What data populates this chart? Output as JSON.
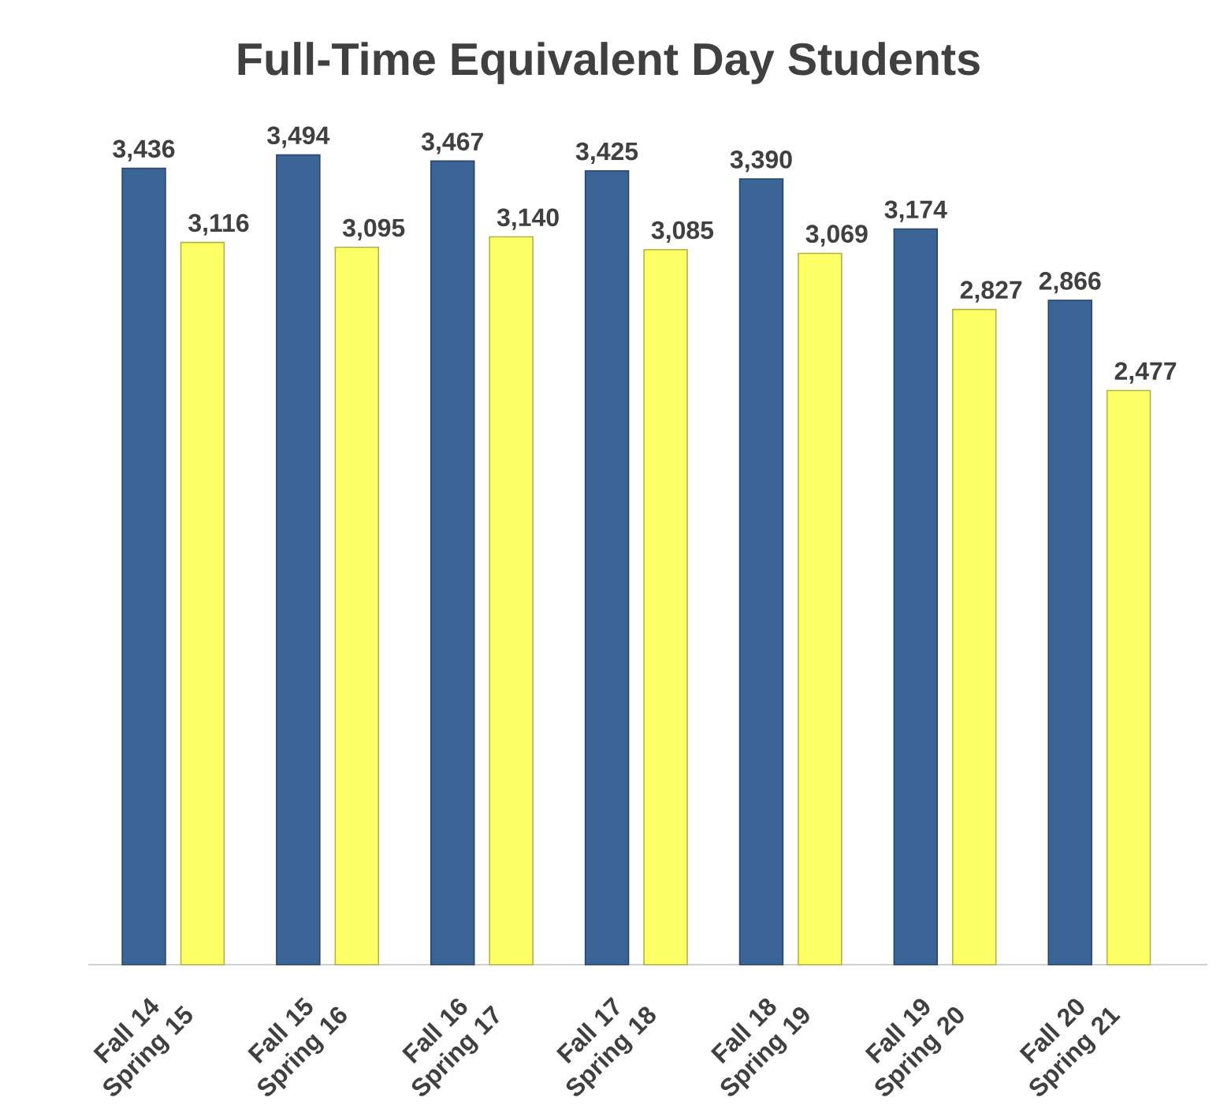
{
  "chart_data": {
    "type": "bar",
    "title": "Full-Time Equivalent Day Students",
    "categories": [
      "Fall 14 Spring 15",
      "Fall 15 Spring 16",
      "Fall 16 Spring 17",
      "Fall 17 Spring 18",
      "Fall 18 Spring 19",
      "Fall 19 Spring 20",
      "Fall 20 Spring 21"
    ],
    "series": [
      {
        "color": "#3b6496",
        "values": [
          3436,
          3494,
          3467,
          3425,
          3390,
          3174,
          2866
        ],
        "value_labels": [
          "3,436",
          "3,494",
          "3,467",
          "3,425",
          "3,390",
          "3,174",
          "2,866"
        ]
      },
      {
        "color": "#ffff66",
        "values": [
          3116,
          3095,
          3140,
          3085,
          3069,
          2827,
          2477
        ],
        "value_labels": [
          "3,116",
          "3,095",
          "3,140",
          "3,085",
          "3,069",
          "2,827",
          "2,477"
        ]
      }
    ]
  }
}
